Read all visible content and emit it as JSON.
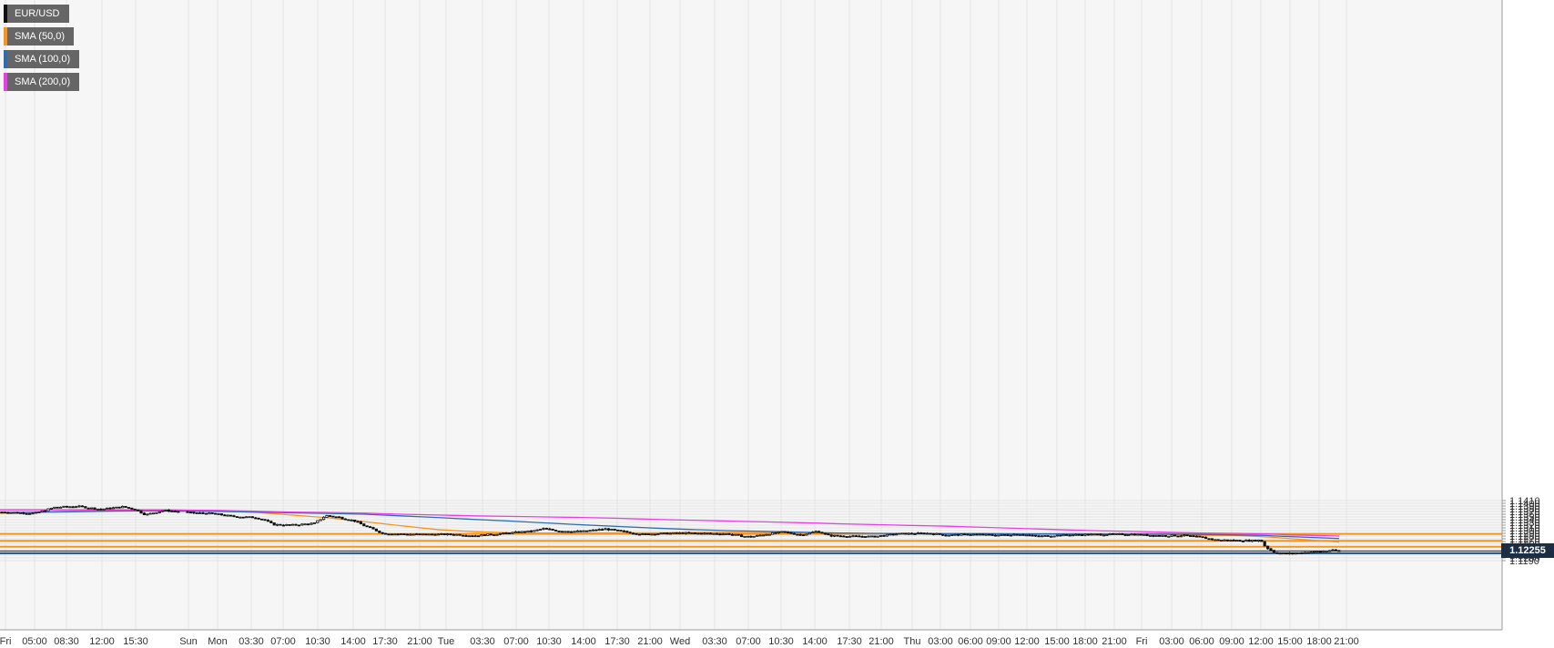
{
  "legend": {
    "items": [
      {
        "label": "EUR/USD",
        "color": "#111111"
      },
      {
        "label": "SMA (50,0)",
        "color": "#f7931e"
      },
      {
        "label": "SMA (100,0)",
        "color": "#2e6db4"
      },
      {
        "label": "SMA (200,0)",
        "color": "#e83ee8"
      }
    ]
  },
  "price_tag": {
    "label": "1.12255",
    "value": 1.12255
  },
  "chart_data": {
    "type": "candlestick",
    "title": "",
    "xlabel": "",
    "ylabel": "",
    "ylim": [
      1.1185,
      1.1415
    ],
    "grid": true,
    "legend_position": "top-left",
    "y_ticks": [
      "1.1190",
      "1.1200",
      "1.1210",
      "1.1220",
      "1.1230",
      "1.1240",
      "1.1250",
      "1.1260",
      "1.1270",
      "1.1280",
      "1.1290",
      "1.1300",
      "1.1310",
      "1.1320",
      "1.1330",
      "1.1340",
      "1.1350",
      "1.1360",
      "1.1370",
      "1.1380",
      "1.1390",
      "1.1400",
      "1.1410"
    ],
    "x_ticks": [
      "Fri",
      "05:00",
      "08:30",
      "12:00",
      "15:30",
      "Sun",
      "Mon",
      "03:30",
      "07:00",
      "10:30",
      "14:00",
      "17:30",
      "21:00",
      "Tue",
      "03:30",
      "07:00",
      "10:30",
      "14:00",
      "17:30",
      "21:00",
      "Wed",
      "03:30",
      "07:00",
      "10:30",
      "14:00",
      "17:30",
      "21:00",
      "Thu",
      "03:00",
      "06:00",
      "09:00",
      "12:00",
      "15:00",
      "18:00",
      "21:00",
      "Fri",
      "03:00",
      "06:00",
      "09:00",
      "12:00",
      "15:00",
      "18:00",
      "21:00"
    ],
    "levels": [
      {
        "value": 1.1288,
        "color": "#f7931e"
      },
      {
        "value": 1.12625,
        "color": "#f7931e"
      },
      {
        "value": 1.1241,
        "color": "#f7931e"
      },
      {
        "value": 1.1217,
        "color": "#1f4e8c"
      }
    ],
    "last_price": 1.12255,
    "close_path": [
      [
        0,
        1.1368
      ],
      [
        38,
        1.1363
      ],
      [
        60,
        1.1385
      ],
      [
        85,
        1.1389
      ],
      [
        110,
        1.1378
      ],
      [
        135,
        1.1387
      ],
      [
        148,
        1.1378
      ],
      [
        160,
        1.1358
      ],
      [
        180,
        1.1374
      ],
      [
        210,
        1.1365
      ],
      [
        235,
        1.1362
      ],
      [
        255,
        1.1352
      ],
      [
        280,
        1.1348
      ],
      [
        290,
        1.134
      ],
      [
        300,
        1.1322
      ],
      [
        320,
        1.132
      ],
      [
        345,
        1.1326
      ],
      [
        358,
        1.1355
      ],
      [
        370,
        1.135
      ],
      [
        390,
        1.1335
      ],
      [
        400,
        1.1318
      ],
      [
        410,
        1.1305
      ],
      [
        420,
        1.129
      ],
      [
        440,
        1.1287
      ],
      [
        470,
        1.1286
      ],
      [
        500,
        1.1286
      ],
      [
        520,
        1.1281
      ],
      [
        540,
        1.1286
      ],
      [
        565,
        1.1293
      ],
      [
        585,
        1.1298
      ],
      [
        597,
        1.1307
      ],
      [
        615,
        1.1298
      ],
      [
        640,
        1.1297
      ],
      [
        665,
        1.1306
      ],
      [
        685,
        1.1296
      ],
      [
        705,
        1.1286
      ],
      [
        725,
        1.1289
      ],
      [
        750,
        1.1291
      ],
      [
        780,
        1.1289
      ],
      [
        800,
        1.1288
      ],
      [
        815,
        1.128
      ],
      [
        825,
        1.1277
      ],
      [
        840,
        1.1286
      ],
      [
        860,
        1.1295
      ],
      [
        880,
        1.1284
      ],
      [
        898,
        1.1298
      ],
      [
        910,
        1.1282
      ],
      [
        935,
        1.1279
      ],
      [
        960,
        1.1278
      ],
      [
        985,
        1.1288
      ],
      [
        1018,
        1.129
      ],
      [
        1040,
        1.1284
      ],
      [
        1070,
        1.1286
      ],
      [
        1095,
        1.1283
      ],
      [
        1120,
        1.1287
      ],
      [
        1140,
        1.1279
      ],
      [
        1165,
        1.1283
      ],
      [
        1190,
        1.1285
      ],
      [
        1215,
        1.1286
      ],
      [
        1240,
        1.1287
      ],
      [
        1260,
        1.1283
      ],
      [
        1280,
        1.1281
      ],
      [
        1300,
        1.1282
      ],
      [
        1318,
        1.1276
      ],
      [
        1335,
        1.1266
      ],
      [
        1355,
        1.1264
      ],
      [
        1375,
        1.1263
      ],
      [
        1385,
        1.1265
      ],
      [
        1390,
        1.124
      ],
      [
        1400,
        1.122
      ],
      [
        1412,
        1.1215
      ],
      [
        1430,
        1.1219
      ],
      [
        1450,
        1.1224
      ],
      [
        1462,
        1.12275
      ],
      [
        1473,
        1.12255
      ]
    ],
    "series": [
      {
        "name": "SMA (50,0)",
        "color": "#f7931e",
        "points": [
          [
            0,
            1.1364
          ],
          [
            30,
            1.1366
          ],
          [
            55,
            1.137
          ],
          [
            95,
            1.1373
          ],
          [
            135,
            1.1375
          ],
          [
            175,
            1.1376
          ],
          [
            215,
            1.1374
          ],
          [
            255,
            1.137
          ],
          [
            285,
            1.1366
          ],
          [
            320,
            1.1357
          ],
          [
            360,
            1.1347
          ],
          [
            400,
            1.1333
          ],
          [
            440,
            1.1318
          ],
          [
            480,
            1.1304
          ],
          [
            520,
            1.1296
          ],
          [
            560,
            1.1292
          ],
          [
            600,
            1.1291
          ],
          [
            640,
            1.1291
          ],
          [
            680,
            1.1292
          ],
          [
            720,
            1.1292
          ],
          [
            760,
            1.1293
          ],
          [
            800,
            1.1294
          ],
          [
            840,
            1.1293
          ],
          [
            880,
            1.1292
          ],
          [
            920,
            1.1291
          ],
          [
            960,
            1.1289
          ],
          [
            1000,
            1.1288
          ],
          [
            1040,
            1.1287
          ],
          [
            1080,
            1.1287
          ],
          [
            1120,
            1.1287
          ],
          [
            1160,
            1.1286
          ],
          [
            1200,
            1.1286
          ],
          [
            1240,
            1.1286
          ],
          [
            1280,
            1.1285
          ],
          [
            1320,
            1.1283
          ],
          [
            1355,
            1.1282
          ],
          [
            1380,
            1.1279
          ],
          [
            1400,
            1.1275
          ],
          [
            1420,
            1.127
          ],
          [
            1445,
            1.1264
          ],
          [
            1471,
            1.1258
          ]
        ]
      },
      {
        "name": "SMA (100,0)",
        "color": "#2e6db4",
        "points": [
          [
            0,
            1.1366
          ],
          [
            40,
            1.1367
          ],
          [
            80,
            1.1369
          ],
          [
            120,
            1.1371
          ],
          [
            160,
            1.1372
          ],
          [
            200,
            1.1371
          ],
          [
            240,
            1.137
          ],
          [
            280,
            1.1368
          ],
          [
            320,
            1.1365
          ],
          [
            360,
            1.1363
          ],
          [
            400,
            1.136
          ],
          [
            440,
            1.1354
          ],
          [
            480,
            1.1348
          ],
          [
            520,
            1.1341
          ],
          [
            560,
            1.1335
          ],
          [
            600,
            1.1328
          ],
          [
            640,
            1.1321
          ],
          [
            680,
            1.1315
          ],
          [
            720,
            1.1309
          ],
          [
            760,
            1.1304
          ],
          [
            800,
            1.13
          ],
          [
            840,
            1.1297
          ],
          [
            880,
            1.1294
          ],
          [
            920,
            1.1291
          ],
          [
            960,
            1.129
          ],
          [
            1000,
            1.1289
          ],
          [
            1040,
            1.1289
          ],
          [
            1080,
            1.1289
          ],
          [
            1120,
            1.1288
          ],
          [
            1160,
            1.1288
          ],
          [
            1200,
            1.1287
          ],
          [
            1240,
            1.1287
          ],
          [
            1280,
            1.1287
          ],
          [
            1320,
            1.1286
          ],
          [
            1360,
            1.1284
          ],
          [
            1390,
            1.1282
          ],
          [
            1410,
            1.1279
          ],
          [
            1440,
            1.1275
          ],
          [
            1471,
            1.1271
          ]
        ]
      },
      {
        "name": "SMA (200,0)",
        "color": "#e83ee8",
        "points": [
          [
            0,
            1.1376
          ],
          [
            40,
            1.1376
          ],
          [
            80,
            1.1376
          ],
          [
            120,
            1.1376
          ],
          [
            160,
            1.1376
          ],
          [
            200,
            1.1375
          ],
          [
            240,
            1.1374
          ],
          [
            280,
            1.1371
          ],
          [
            320,
            1.1368
          ],
          [
            360,
            1.1366
          ],
          [
            400,
            1.1364
          ],
          [
            440,
            1.136
          ],
          [
            480,
            1.1357
          ],
          [
            520,
            1.1354
          ],
          [
            560,
            1.1352
          ],
          [
            600,
            1.135
          ],
          [
            640,
            1.1348
          ],
          [
            680,
            1.1345
          ],
          [
            720,
            1.1341
          ],
          [
            760,
            1.1338
          ],
          [
            800,
            1.1335
          ],
          [
            840,
            1.1332
          ],
          [
            880,
            1.1329
          ],
          [
            920,
            1.1325
          ],
          [
            960,
            1.1322
          ],
          [
            1000,
            1.1319
          ],
          [
            1040,
            1.1316
          ],
          [
            1080,
            1.1312
          ],
          [
            1120,
            1.1308
          ],
          [
            1160,
            1.1304
          ],
          [
            1200,
            1.13
          ],
          [
            1240,
            1.1297
          ],
          [
            1280,
            1.1294
          ],
          [
            1320,
            1.1291
          ],
          [
            1360,
            1.129
          ],
          [
            1390,
            1.1288
          ],
          [
            1420,
            1.1284
          ],
          [
            1446,
            1.1282
          ],
          [
            1471,
            1.128
          ]
        ]
      }
    ]
  }
}
